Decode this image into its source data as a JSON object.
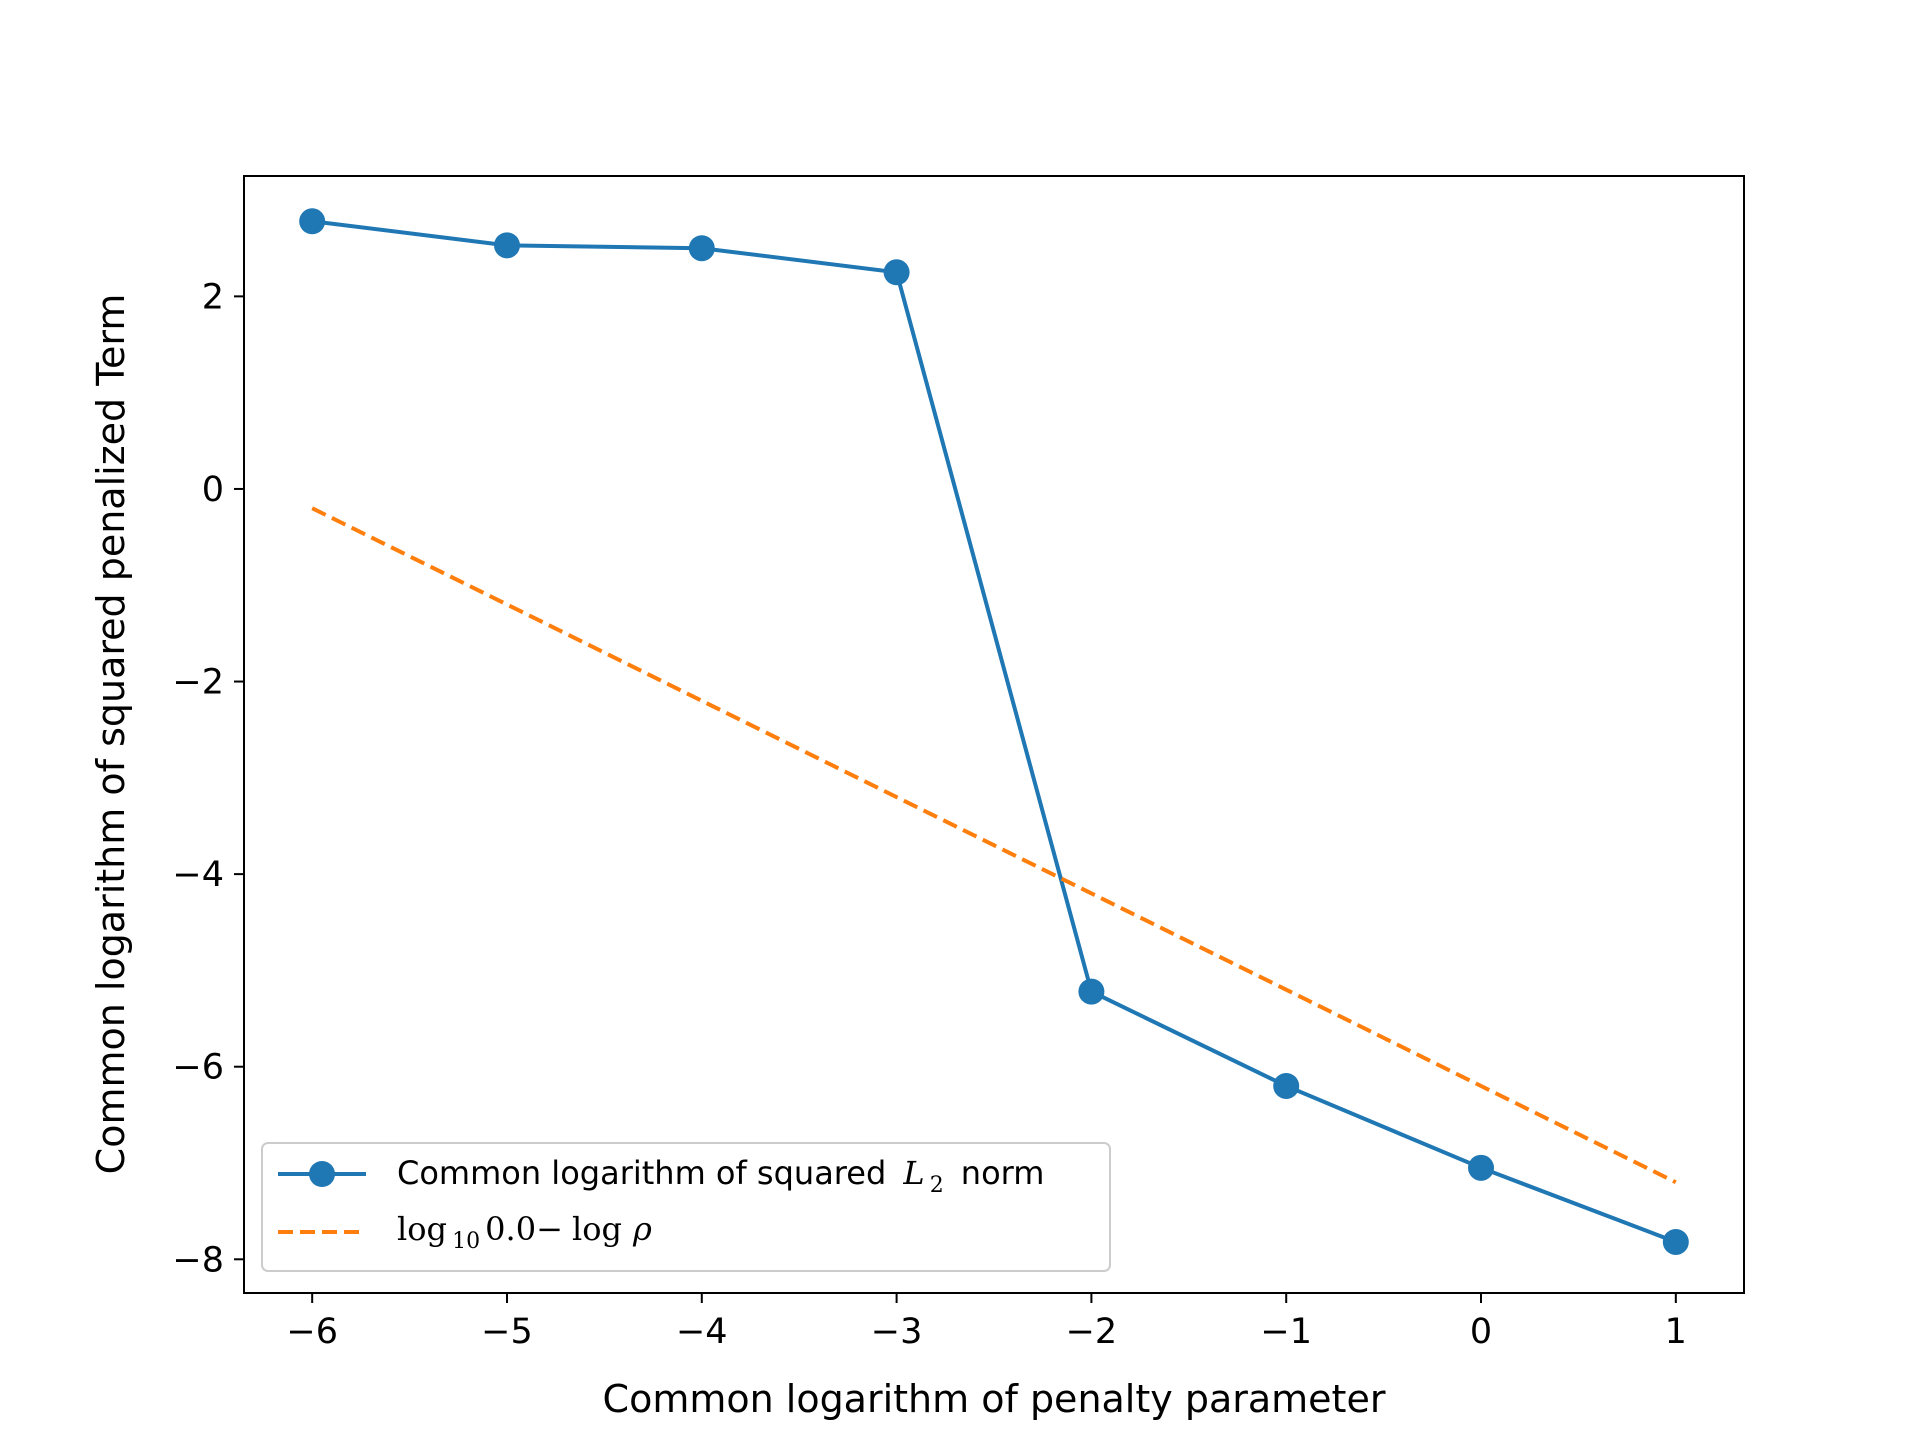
{
  "chart_data": {
    "type": "line",
    "title": "",
    "xlabel": "Common logarithm of penalty parameter",
    "ylabel": "Common logarithm of squared penalized Term",
    "xlim": [
      -6.35,
      1.35
    ],
    "ylim": [
      -8.35,
      3.25
    ],
    "x_ticks": [
      -6,
      -5,
      -4,
      -3,
      -2,
      -1,
      0,
      1
    ],
    "x_tick_labels": [
      "−6",
      "−5",
      "−4",
      "−3",
      "−2",
      "−1",
      "0",
      "1"
    ],
    "y_ticks": [
      2,
      0,
      -2,
      -4,
      -6,
      -8
    ],
    "y_tick_labels": [
      "2",
      "0",
      "−2",
      "−4",
      "−6",
      "−8"
    ],
    "grid": false,
    "legend_position": "lower-left",
    "series": [
      {
        "name": "Common logarithm of squared L2 norm",
        "legend_text": "Common logarithm of squared",
        "legend_math": "L",
        "legend_math_sub": "2",
        "legend_text_after": "norm",
        "style": "solid-markers",
        "color": "#1f77b4",
        "x": [
          -6,
          -5,
          -4,
          -3,
          -2,
          -1,
          0,
          1
        ],
        "y": [
          2.78,
          2.53,
          2.5,
          2.25,
          -5.22,
          -6.2,
          -7.05,
          -7.82
        ]
      },
      {
        "name": "log10 0.0 − log ρ",
        "legend_math_log": "log",
        "legend_math_sub": "10",
        "legend_math_rest": "0.0−",
        "legend_math_log2": "log",
        "legend_math_rho": "ρ",
        "style": "dashed",
        "color": "#ff7f0e",
        "x": [
          -6,
          1
        ],
        "y": [
          -0.2,
          -7.2
        ]
      }
    ]
  }
}
